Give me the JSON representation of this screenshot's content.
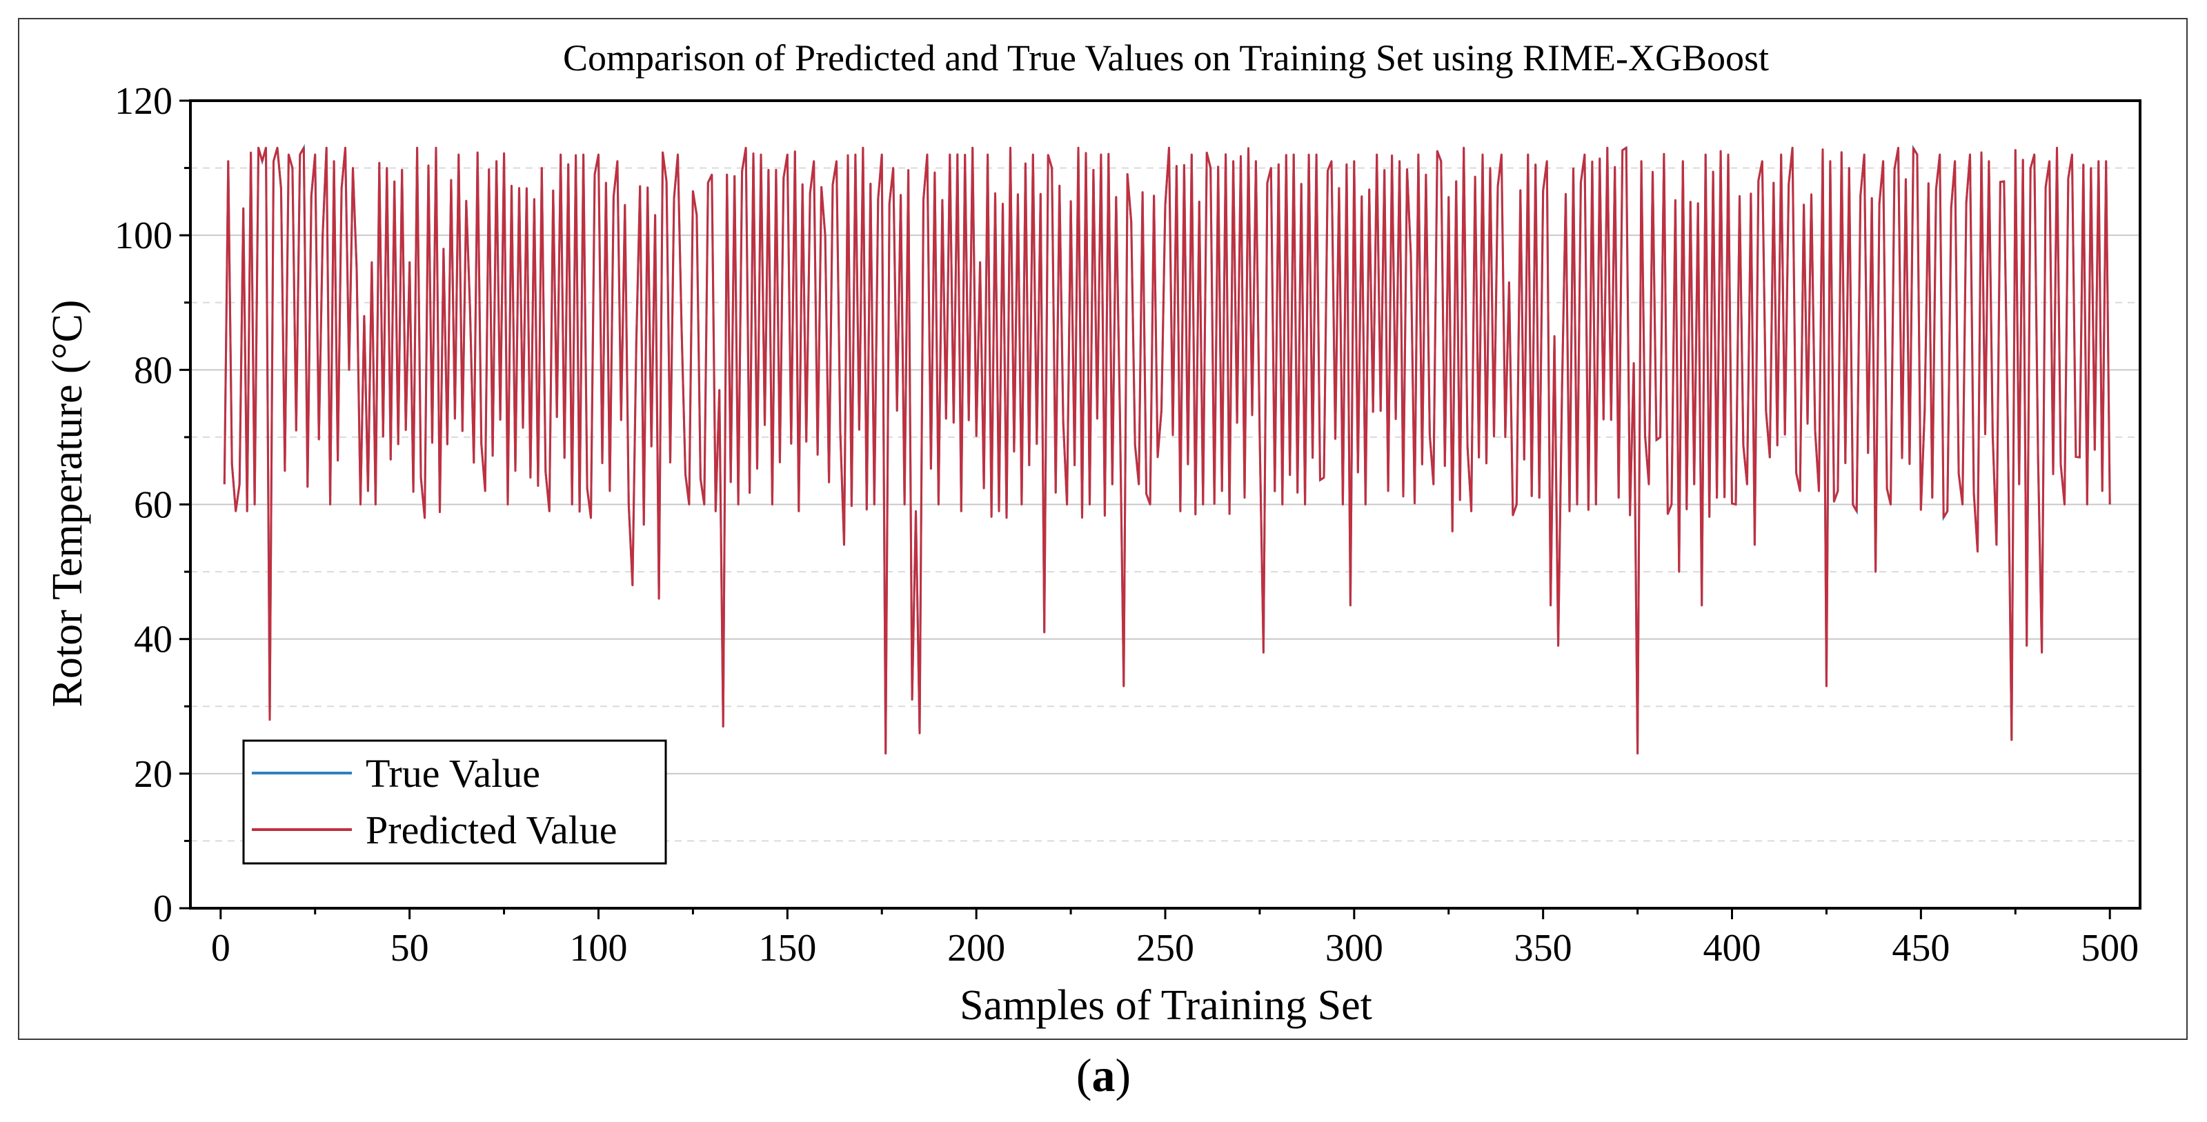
{
  "caption": {
    "open": "(",
    "letter": "a",
    "close": ")"
  },
  "chart_data": {
    "type": "line",
    "title": "Comparison of Predicted and True Values on Training Set using RIME-XGBoost",
    "xlabel": "Samples of Training Set",
    "ylabel": "Rotor Temperature (°C)",
    "xlim": [
      -8,
      508
    ],
    "ylim": [
      0,
      120
    ],
    "xticks": [
      0,
      50,
      100,
      150,
      200,
      250,
      300,
      350,
      400,
      450,
      500
    ],
    "yticks": [
      0,
      20,
      40,
      60,
      80,
      100,
      120
    ],
    "grid": true,
    "legend_position": "bottom-left",
    "colors": {
      "true": "#2f7fc1",
      "predicted": "#c0303f",
      "grid_major": "#c8c8c8",
      "grid_minor": "#dadada"
    },
    "x_start": 1,
    "anchors": [
      [
        1,
        63
      ],
      [
        2,
        111
      ],
      [
        3,
        66
      ],
      [
        4,
        59
      ],
      [
        5,
        63
      ],
      [
        7,
        59
      ],
      [
        9,
        60
      ],
      [
        10,
        113
      ],
      [
        11,
        111
      ],
      [
        12,
        113
      ],
      [
        13,
        28
      ],
      [
        14,
        111
      ],
      [
        15,
        113
      ],
      [
        16,
        107
      ],
      [
        17,
        65
      ],
      [
        18,
        112
      ],
      [
        19,
        110
      ],
      [
        20,
        71
      ],
      [
        21,
        112
      ],
      [
        22,
        113
      ],
      [
        25,
        112
      ],
      [
        27,
        100
      ],
      [
        28,
        113
      ],
      [
        29,
        60
      ],
      [
        30,
        111
      ],
      [
        33,
        113
      ],
      [
        34,
        80
      ],
      [
        35,
        110
      ],
      [
        36,
        95
      ],
      [
        37,
        60
      ],
      [
        38,
        88
      ],
      [
        39,
        62
      ],
      [
        40,
        96
      ],
      [
        41,
        60
      ],
      [
        44,
        110
      ],
      [
        46,
        108
      ],
      [
        50,
        96
      ],
      [
        52,
        113
      ],
      [
        54,
        58
      ],
      [
        57,
        113
      ],
      [
        59,
        98
      ],
      [
        63,
        112
      ],
      [
        66,
        89
      ],
      [
        70,
        62
      ],
      [
        73,
        111
      ],
      [
        76,
        60
      ],
      [
        78,
        65
      ],
      [
        82,
        64
      ],
      [
        85,
        110
      ],
      [
        87,
        59
      ],
      [
        90,
        112
      ],
      [
        93,
        60
      ],
      [
        96,
        112
      ],
      [
        98,
        58
      ],
      [
        100,
        112
      ],
      [
        103,
        62
      ],
      [
        105,
        111
      ],
      [
        108,
        60
      ],
      [
        109,
        48
      ],
      [
        110,
        84
      ],
      [
        112,
        57
      ],
      [
        115,
        103
      ],
      [
        116,
        46
      ],
      [
        118,
        108
      ],
      [
        121,
        112
      ],
      [
        122,
        86
      ],
      [
        124,
        60
      ],
      [
        126,
        103
      ],
      [
        128,
        60
      ],
      [
        130,
        109
      ],
      [
        131,
        59
      ],
      [
        132,
        77
      ],
      [
        133,
        27
      ],
      [
        134,
        109
      ],
      [
        137,
        60
      ],
      [
        139,
        113
      ],
      [
        143,
        112
      ],
      [
        146,
        60
      ],
      [
        150,
        112
      ],
      [
        153,
        59
      ],
      [
        157,
        111
      ],
      [
        160,
        100
      ],
      [
        163,
        111
      ],
      [
        165,
        54
      ],
      [
        168,
        112
      ],
      [
        170,
        113
      ],
      [
        173,
        60
      ],
      [
        175,
        112
      ],
      [
        176,
        23
      ],
      [
        178,
        110
      ],
      [
        181,
        60
      ],
      [
        183,
        31
      ],
      [
        184,
        59
      ],
      [
        185,
        26
      ],
      [
        187,
        112
      ],
      [
        190,
        60
      ],
      [
        193,
        112
      ],
      [
        196,
        59
      ],
      [
        199,
        113
      ],
      [
        201,
        96
      ],
      [
        203,
        112
      ],
      [
        206,
        59
      ],
      [
        209,
        113
      ],
      [
        212,
        60
      ],
      [
        215,
        112
      ],
      [
        218,
        41
      ],
      [
        220,
        110
      ],
      [
        224,
        60
      ],
      [
        227,
        113
      ],
      [
        230,
        60
      ],
      [
        233,
        112
      ],
      [
        236,
        63
      ],
      [
        239,
        33
      ],
      [
        241,
        102
      ],
      [
        243,
        63
      ],
      [
        246,
        60
      ],
      [
        249,
        74
      ],
      [
        251,
        113
      ],
      [
        254,
        59
      ],
      [
        257,
        112
      ],
      [
        260,
        60
      ],
      [
        262,
        110
      ],
      [
        265,
        62
      ],
      [
        268,
        111
      ],
      [
        271,
        61
      ],
      [
        274,
        111
      ],
      [
        276,
        38
      ],
      [
        278,
        110
      ],
      [
        281,
        60
      ],
      [
        284,
        112
      ],
      [
        287,
        60
      ],
      [
        290,
        112
      ],
      [
        292,
        64
      ],
      [
        294,
        111
      ],
      [
        297,
        60
      ],
      [
        299,
        45
      ],
      [
        300,
        111
      ],
      [
        303,
        60
      ],
      [
        306,
        112
      ],
      [
        309,
        62
      ],
      [
        312,
        111
      ],
      [
        315,
        97
      ],
      [
        317,
        112
      ],
      [
        321,
        63
      ],
      [
        323,
        111
      ],
      [
        326,
        56
      ],
      [
        329,
        113
      ],
      [
        331,
        59
      ],
      [
        334,
        112
      ],
      [
        336,
        110
      ],
      [
        339,
        112
      ],
      [
        341,
        93
      ],
      [
        343,
        60
      ],
      [
        346,
        112
      ],
      [
        349,
        61
      ],
      [
        351,
        111
      ],
      [
        352,
        45
      ],
      [
        353,
        85
      ],
      [
        354,
        39
      ],
      [
        355,
        77
      ],
      [
        357,
        59
      ],
      [
        359,
        60
      ],
      [
        361,
        112
      ],
      [
        364,
        60
      ],
      [
        367,
        113
      ],
      [
        370,
        61
      ],
      [
        372,
        113
      ],
      [
        374,
        81
      ],
      [
        375,
        23
      ],
      [
        376,
        111
      ],
      [
        378,
        63
      ],
      [
        381,
        70
      ],
      [
        384,
        60
      ],
      [
        386,
        50
      ],
      [
        387,
        111
      ],
      [
        390,
        63
      ],
      [
        392,
        45
      ],
      [
        393,
        112
      ],
      [
        396,
        61
      ],
      [
        399,
        112
      ],
      [
        401,
        60
      ],
      [
        404,
        63
      ],
      [
        406,
        54
      ],
      [
        408,
        111
      ],
      [
        410,
        67
      ],
      [
        413,
        112
      ],
      [
        416,
        113
      ],
      [
        418,
        62
      ],
      [
        420,
        72
      ],
      [
        423,
        62
      ],
      [
        425,
        33
      ],
      [
        426,
        111
      ],
      [
        428,
        62
      ],
      [
        431,
        110
      ],
      [
        433,
        59
      ],
      [
        435,
        112
      ],
      [
        438,
        50
      ],
      [
        440,
        111
      ],
      [
        442,
        60
      ],
      [
        444,
        113
      ],
      [
        447,
        66
      ],
      [
        449,
        112
      ],
      [
        451,
        74
      ],
      [
        453,
        61
      ],
      [
        455,
        112
      ],
      [
        457,
        59
      ],
      [
        459,
        111
      ],
      [
        461,
        60
      ],
      [
        463,
        112
      ],
      [
        465,
        53
      ],
      [
        468,
        111
      ],
      [
        470,
        54
      ],
      [
        472,
        108
      ],
      [
        474,
        25
      ],
      [
        476,
        63
      ],
      [
        478,
        39
      ],
      [
        480,
        112
      ],
      [
        482,
        38
      ],
      [
        484,
        111
      ],
      [
        486,
        113
      ],
      [
        488,
        60
      ],
      [
        490,
        112
      ],
      [
        492,
        67
      ],
      [
        494,
        60
      ],
      [
        497,
        111
      ],
      [
        498,
        62
      ],
      [
        499,
        111
      ],
      [
        500,
        60
      ]
    ],
    "series": [
      {
        "name": "True Value",
        "color_key": "true"
      },
      {
        "name": "Predicted Value",
        "color_key": "predicted"
      }
    ]
  }
}
